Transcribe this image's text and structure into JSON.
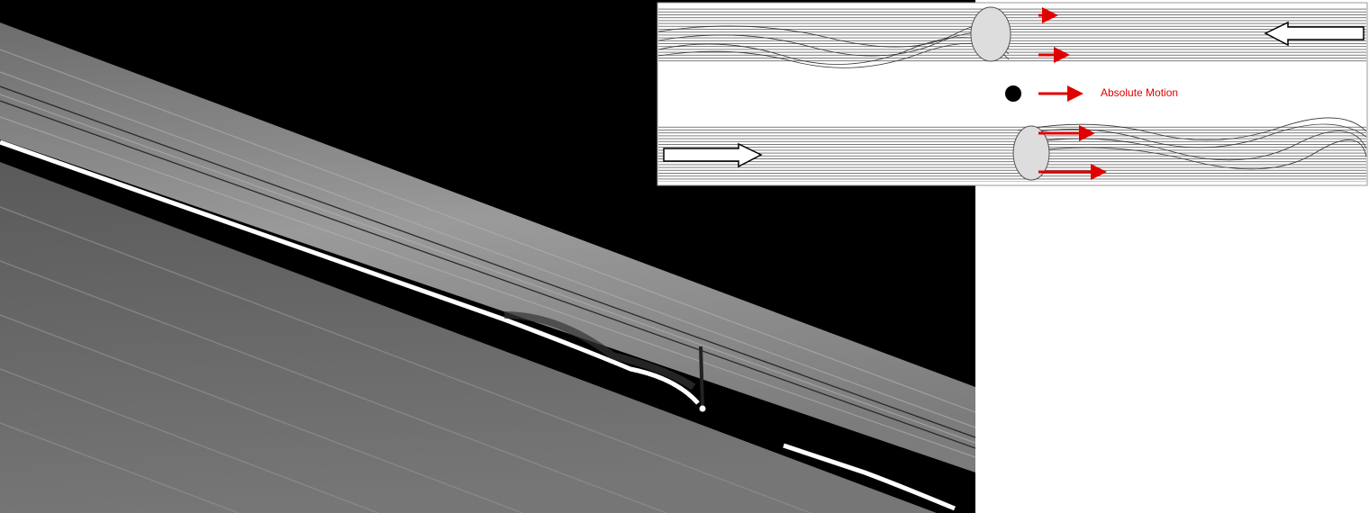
{
  "diagram": {
    "label": "Absolute Motion"
  }
}
